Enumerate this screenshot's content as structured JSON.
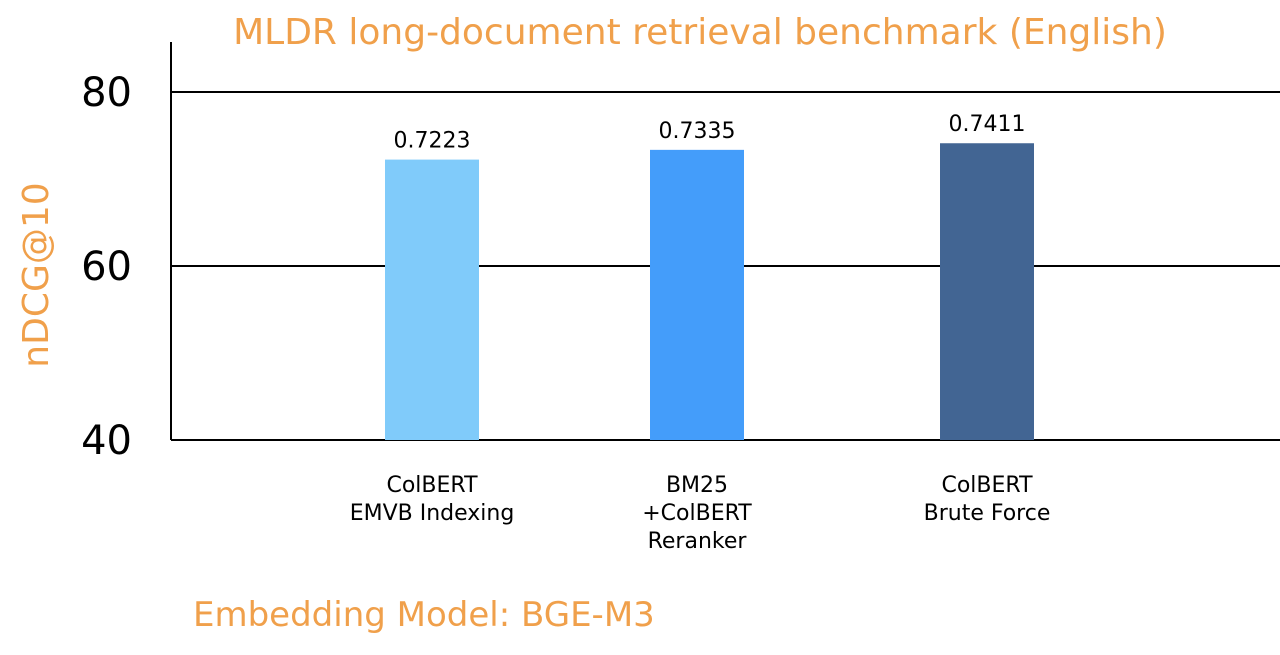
{
  "chart_data": {
    "type": "bar",
    "title": "MLDR long-document retrieval benchmark (English)",
    "ylabel": "nDCG@10",
    "xlabel": "",
    "note": "Embedding Model: BGE-M3",
    "ylim": [
      40,
      80
    ],
    "yticks": [
      "80",
      "60",
      "40"
    ],
    "grid": true,
    "categories": [
      [
        "ColBERT",
        "EMVB Indexing"
      ],
      [
        "BM25",
        "+ColBERT",
        "Reranker"
      ],
      [
        "ColBERT",
        "Brute Force"
      ]
    ],
    "values": [
      72.23,
      73.35,
      74.11
    ],
    "value_labels": [
      "0.7223",
      "0.7335",
      "0.7411"
    ],
    "colors": [
      "#80cbfa",
      "#449dfa",
      "#426593"
    ]
  }
}
